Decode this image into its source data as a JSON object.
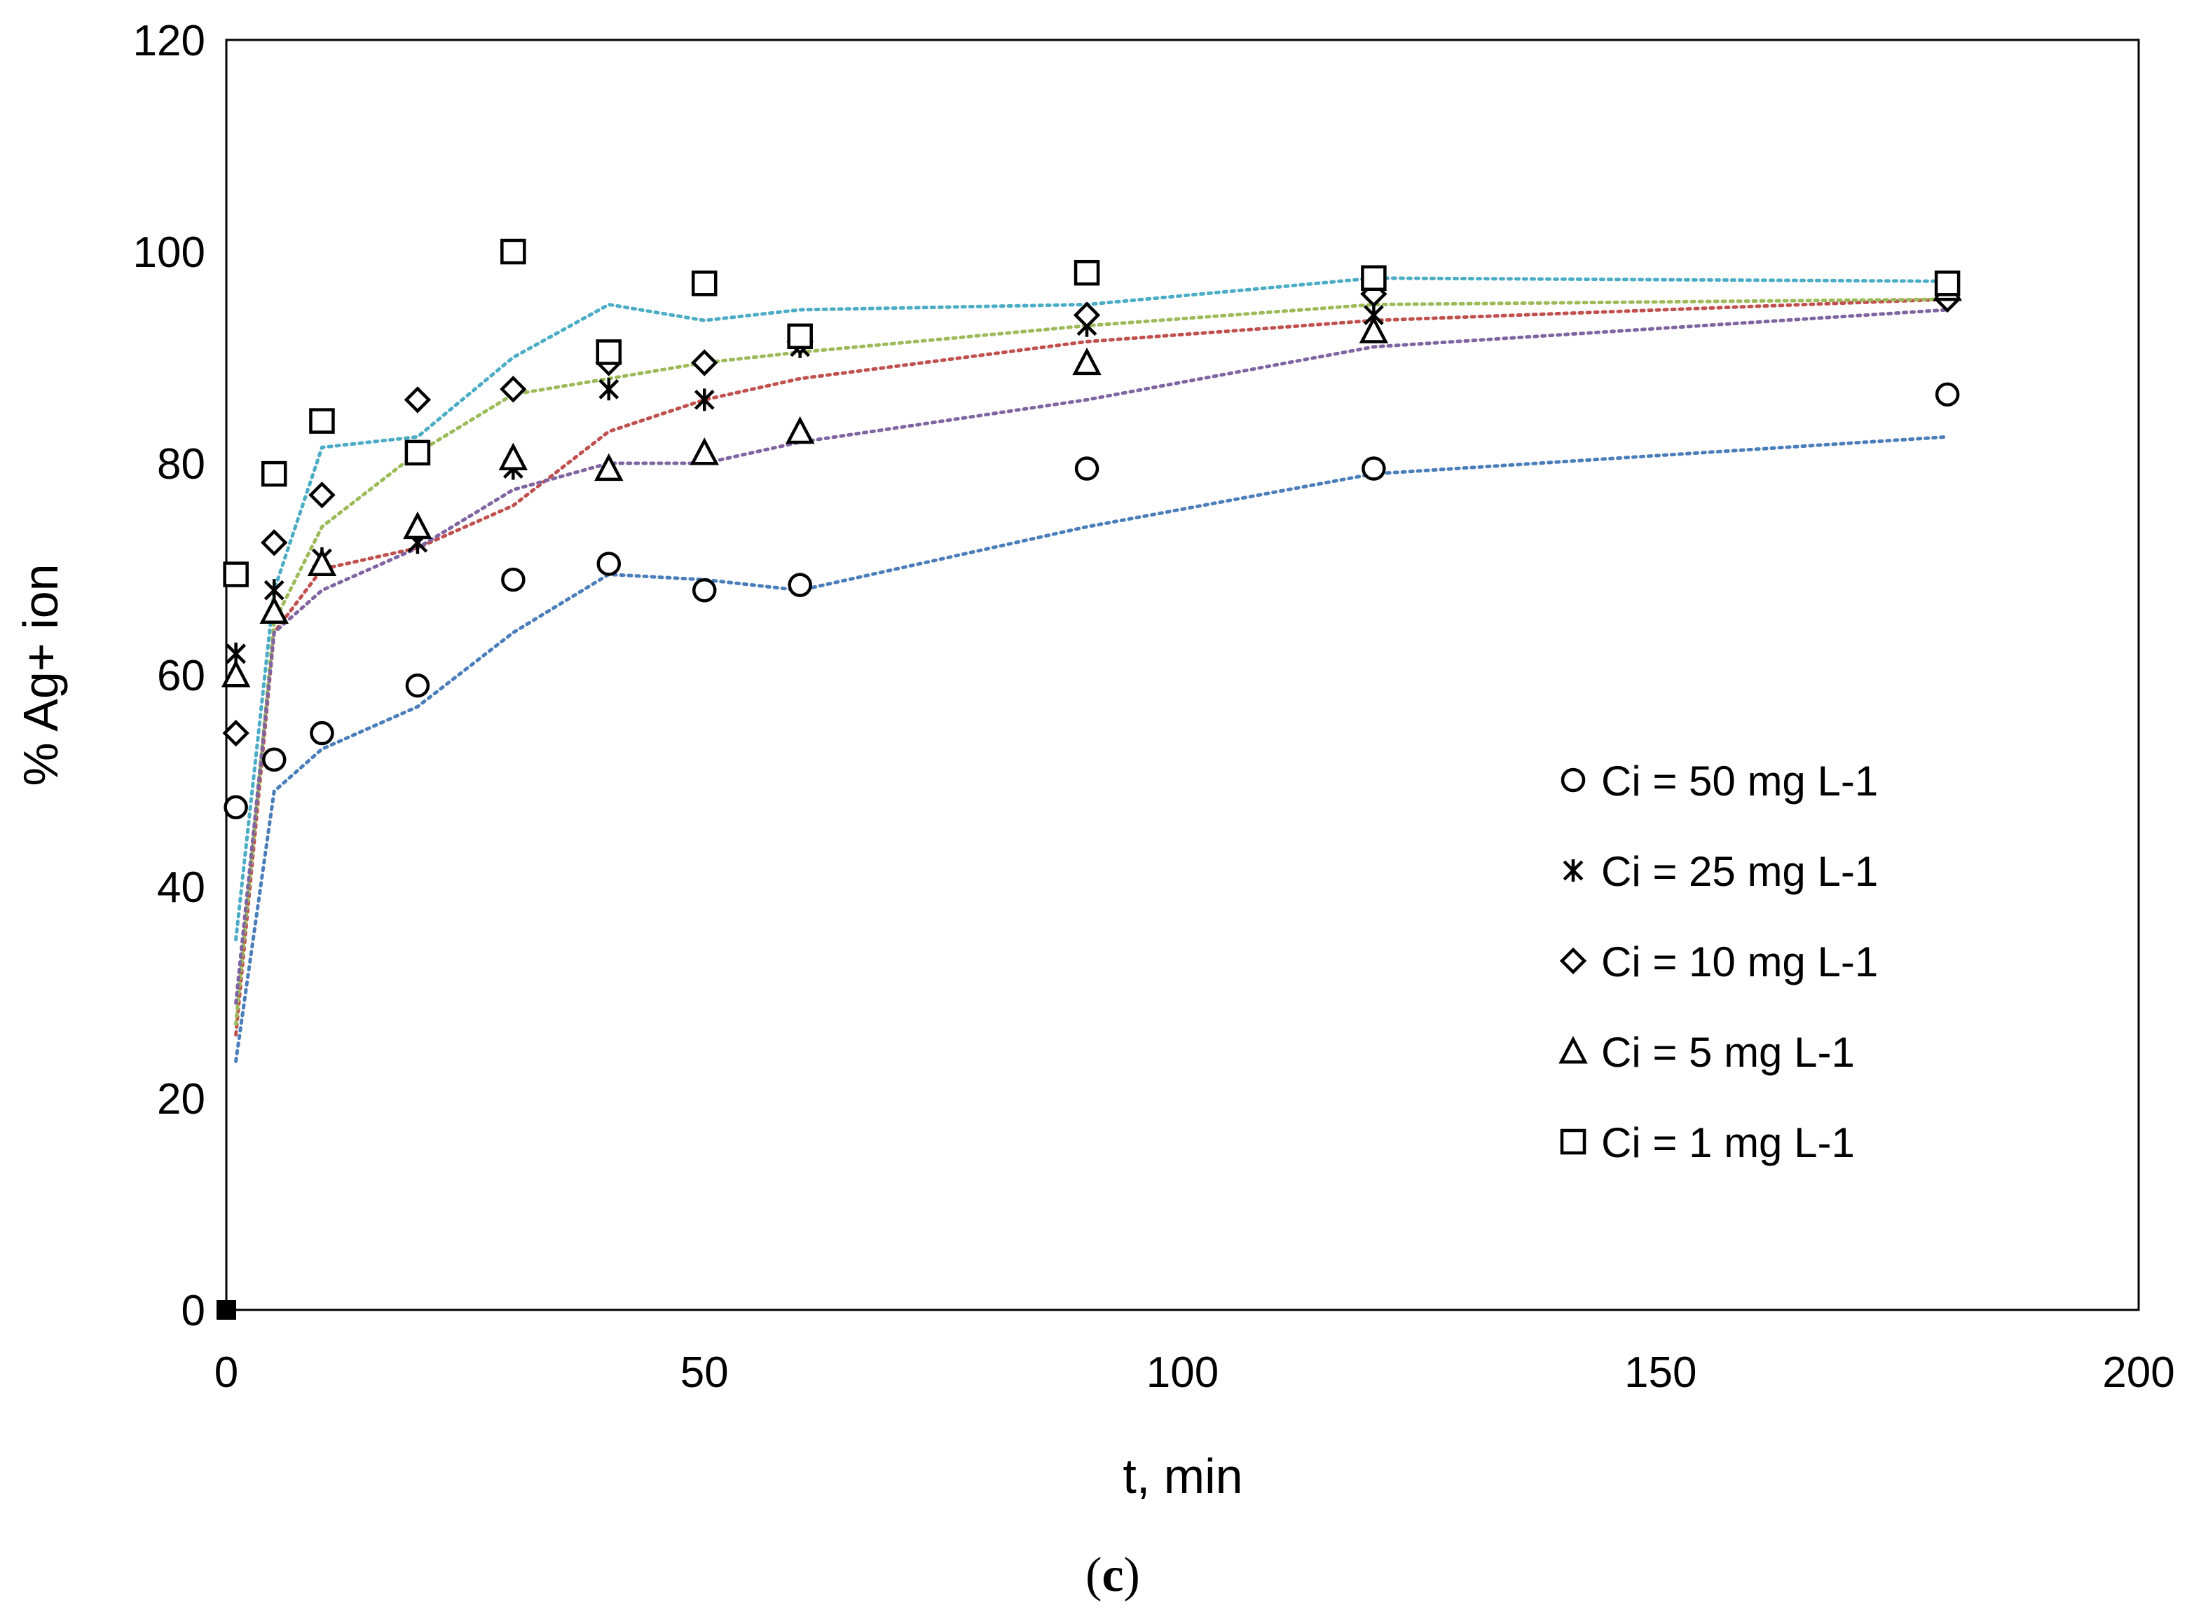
{
  "chart_data": {
    "type": "scatter",
    "title": "",
    "xlabel": "t, min",
    "ylabel": "% Ag+ ion",
    "xlim": [
      0,
      200
    ],
    "ylim": [
      0,
      120
    ],
    "xticks": [
      0,
      50,
      100,
      150,
      200
    ],
    "yticks": [
      0,
      20,
      40,
      60,
      80,
      100,
      120
    ],
    "xtick_labels": [
      "0",
      "50",
      "100",
      "150",
      "200"
    ],
    "ytick_labels": [
      "0",
      "20",
      "40",
      "60",
      "80",
      "100",
      "120"
    ],
    "grid": false,
    "legend_position": "right",
    "caption_open": "(",
    "caption_letter": "c",
    "caption_close": ")",
    "origin_point": [
      0,
      0
    ],
    "series": [
      {
        "name": "Ci = 50 mg L-1",
        "marker": "circle",
        "trend_color": "#4a7ebb",
        "x": [
          1,
          5,
          10,
          20,
          30,
          40,
          50,
          60,
          90,
          120,
          180
        ],
        "y": [
          47.5,
          52,
          54.5,
          59,
          69,
          70.5,
          68,
          68.5,
          79.5,
          79.5,
          86.5
        ],
        "trend": [
          [
            1,
            23.5
          ],
          [
            5,
            49
          ],
          [
            10,
            53
          ],
          [
            20,
            57
          ],
          [
            30,
            64
          ],
          [
            40,
            69.5
          ],
          [
            50,
            69
          ],
          [
            60,
            68
          ],
          [
            90,
            74
          ],
          [
            120,
            79
          ],
          [
            180,
            82.5
          ]
        ]
      },
      {
        "name": "Ci = 25 mg L-1",
        "marker": "asterisk",
        "trend_color": "#c0504d",
        "x": [
          1,
          5,
          10,
          20,
          30,
          40,
          50,
          60,
          90,
          120,
          180
        ],
        "y": [
          62,
          68,
          71,
          72.5,
          79.5,
          87,
          86,
          91,
          93,
          94,
          96
        ],
        "trend": [
          [
            1,
            26
          ],
          [
            5,
            64
          ],
          [
            10,
            70
          ],
          [
            20,
            72
          ],
          [
            30,
            76
          ],
          [
            40,
            83
          ],
          [
            50,
            86
          ],
          [
            60,
            88
          ],
          [
            90,
            91.5
          ],
          [
            120,
            93.5
          ],
          [
            180,
            95.5
          ]
        ]
      },
      {
        "name": "Ci = 10 mg L-1",
        "marker": "diamond",
        "trend_color": "#9bbb59",
        "x": [
          1,
          5,
          10,
          20,
          30,
          40,
          50,
          60,
          90,
          120,
          180
        ],
        "y": [
          54.5,
          72.5,
          77,
          86,
          87,
          89.5,
          89.5,
          91.5,
          94,
          96,
          95.5
        ],
        "trend": [
          [
            1,
            27
          ],
          [
            5,
            65
          ],
          [
            10,
            74
          ],
          [
            20,
            81
          ],
          [
            30,
            86.5
          ],
          [
            40,
            88
          ],
          [
            50,
            89.5
          ],
          [
            60,
            90.5
          ],
          [
            90,
            93
          ],
          [
            120,
            95
          ],
          [
            180,
            95.5
          ]
        ]
      },
      {
        "name": "Ci = 5 mg L-1",
        "marker": "triangle",
        "trend_color": "#8064a2",
        "x": [
          1,
          5,
          10,
          20,
          30,
          40,
          50,
          60,
          90,
          120,
          180
        ],
        "y": [
          60,
          66,
          70.5,
          74,
          80.5,
          79.5,
          81,
          83,
          89.5,
          92.5,
          96.5
        ],
        "trend": [
          [
            1,
            29
          ],
          [
            5,
            64
          ],
          [
            10,
            68
          ],
          [
            20,
            72
          ],
          [
            30,
            77.5
          ],
          [
            40,
            80
          ],
          [
            50,
            80
          ],
          [
            60,
            82
          ],
          [
            90,
            86
          ],
          [
            120,
            91
          ],
          [
            180,
            94.5
          ]
        ]
      },
      {
        "name": "Ci = 1 mg L-1",
        "marker": "square",
        "trend_color": "#4bacc6",
        "x": [
          1,
          5,
          10,
          20,
          30,
          40,
          50,
          60,
          90,
          120,
          180
        ],
        "y": [
          69.5,
          79,
          84,
          81,
          100,
          90.5,
          97,
          92,
          98,
          97.5,
          97
        ],
        "trend": [
          [
            1,
            35
          ],
          [
            5,
            68
          ],
          [
            10,
            81.5
          ],
          [
            20,
            82.5
          ],
          [
            30,
            90
          ],
          [
            40,
            95
          ],
          [
            50,
            93.5
          ],
          [
            60,
            94.5
          ],
          [
            90,
            95
          ],
          [
            120,
            97.5
          ],
          [
            180,
            97.2
          ]
        ]
      }
    ]
  }
}
